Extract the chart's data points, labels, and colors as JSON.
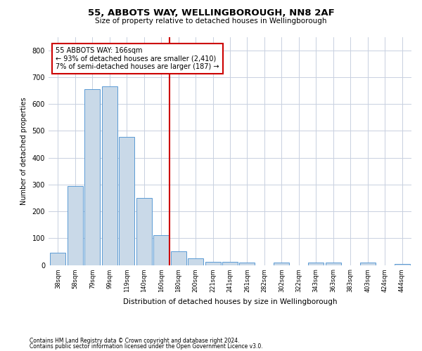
{
  "title1": "55, ABBOTS WAY, WELLINGBOROUGH, NN8 2AF",
  "title2": "Size of property relative to detached houses in Wellingborough",
  "xlabel": "Distribution of detached houses by size in Wellingborough",
  "ylabel": "Number of detached properties",
  "footer1": "Contains HM Land Registry data © Crown copyright and database right 2024.",
  "footer2": "Contains public sector information licensed under the Open Government Licence v3.0.",
  "annotation_line1": "55 ABBOTS WAY: 166sqm",
  "annotation_line2": "← 93% of detached houses are smaller (2,410)",
  "annotation_line3": "7% of semi-detached houses are larger (187) →",
  "bar_color": "#c9d9e8",
  "bar_edge_color": "#5b9bd5",
  "ref_line_color": "#cc0000",
  "annotation_box_color": "#cc0000",
  "background_color": "#ffffff",
  "grid_color": "#c8d0e0",
  "categories": [
    "38sqm",
    "58sqm",
    "79sqm",
    "99sqm",
    "119sqm",
    "140sqm",
    "160sqm",
    "180sqm",
    "200sqm",
    "221sqm",
    "241sqm",
    "261sqm",
    "282sqm",
    "302sqm",
    "322sqm",
    "343sqm",
    "363sqm",
    "383sqm",
    "403sqm",
    "424sqm",
    "444sqm"
  ],
  "values": [
    45,
    293,
    655,
    665,
    478,
    250,
    110,
    50,
    25,
    13,
    13,
    8,
    0,
    8,
    0,
    8,
    8,
    0,
    8,
    0,
    5
  ],
  "ref_line_x": 6.5,
  "ylim": [
    0,
    850
  ],
  "yticks": [
    0,
    100,
    200,
    300,
    400,
    500,
    600,
    700,
    800
  ]
}
